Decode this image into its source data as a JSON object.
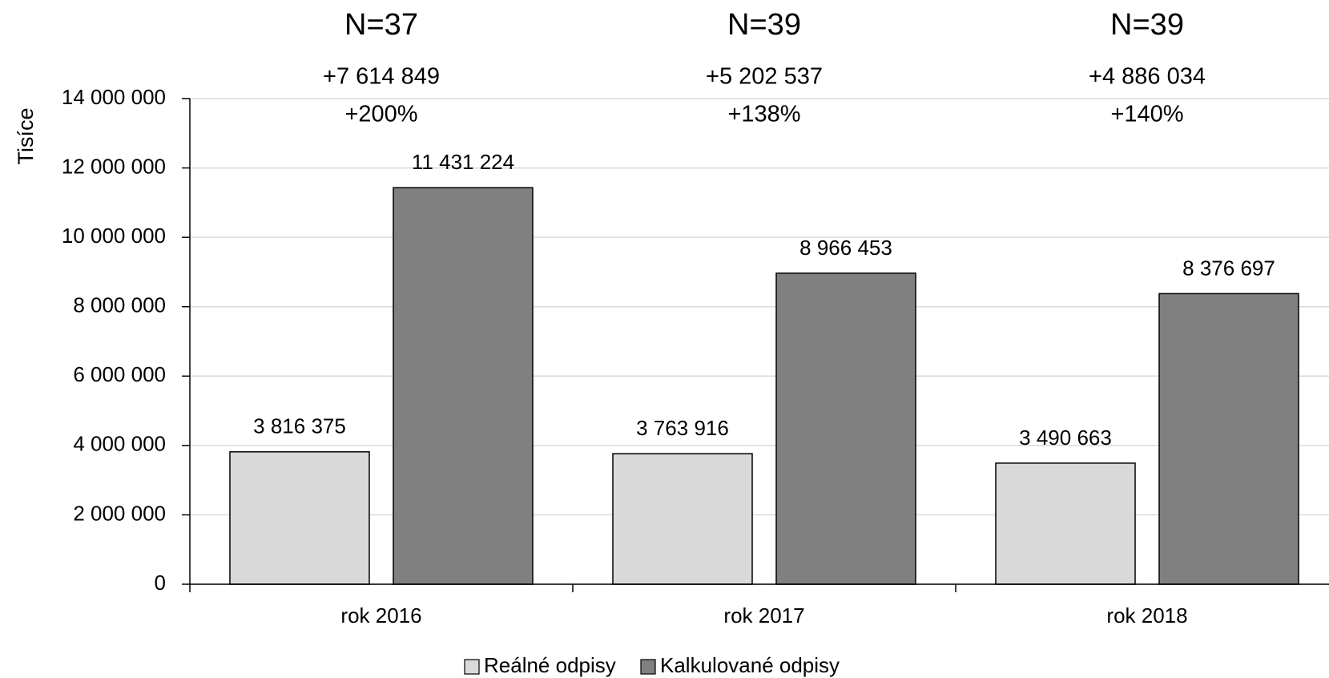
{
  "chart_data": {
    "type": "bar",
    "y_label": "Tisíce",
    "categories": [
      "rok 2016",
      "rok 2017",
      "rok 2018"
    ],
    "annotations": [
      {
        "n": "N=37",
        "diff": "+7 614 849",
        "pct": "+200%"
      },
      {
        "n": "N=39",
        "diff": "+5 202 537",
        "pct": "+138%"
      },
      {
        "n": "N=39",
        "diff": "+4 886 034",
        "pct": "+140%"
      }
    ],
    "series": [
      {
        "name": "Reálné odpisy",
        "color": "#d9d9d9",
        "values": [
          3816375,
          3763916,
          3490663
        ],
        "value_labels": [
          "3 816 375",
          "3 763 916",
          "3 490 663"
        ]
      },
      {
        "name": "Kalkulované odpisy",
        "color": "#808080",
        "values": [
          11431224,
          8966453,
          8376697
        ],
        "value_labels": [
          "11 431 224",
          "8 966 453",
          "8 376 697"
        ]
      }
    ],
    "ylim": [
      0,
      14000000
    ],
    "yticks": [
      0,
      {
        "value": 2000000,
        "label": "2 000 000"
      },
      {
        "value": 4000000,
        "label": "4 000 000"
      },
      {
        "value": 6000000,
        "label": "6 000 000"
      },
      {
        "value": 8000000,
        "label": "8 000 000"
      },
      {
        "value": 10000000,
        "label": "10 000 000"
      },
      {
        "value": 12000000,
        "label": "12 000 000"
      },
      {
        "value": 14000000,
        "label": "14 000 000"
      }
    ],
    "grid": true,
    "legend": "bottom"
  }
}
